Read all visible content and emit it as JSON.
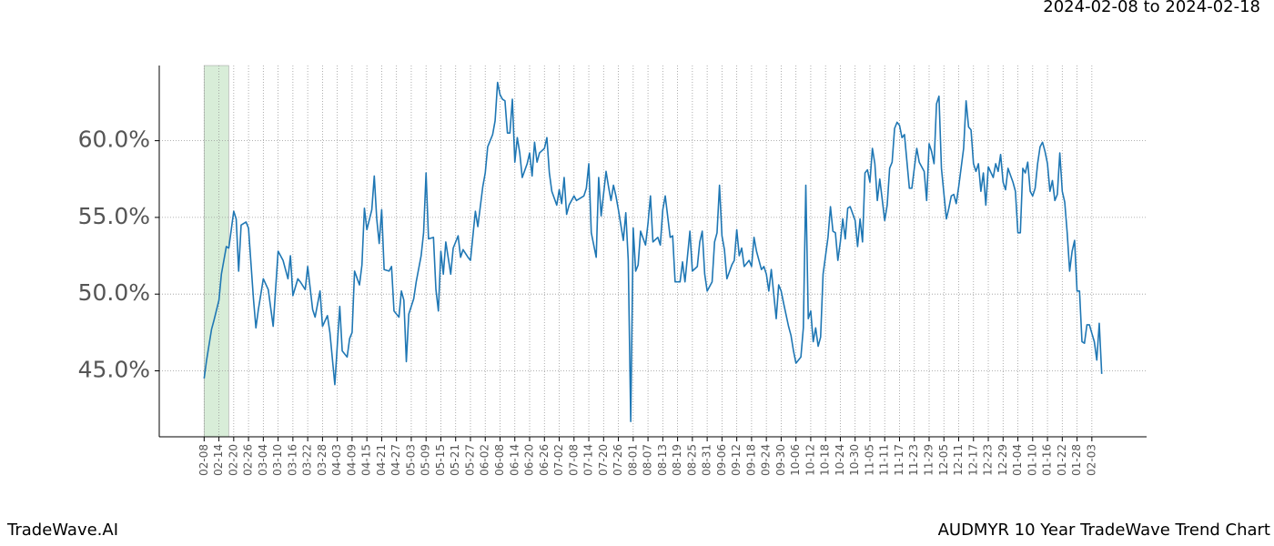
{
  "chart_data": {
    "type": "line",
    "subtitle": "2024-02-08 to 2024-02-18",
    "footer_left": "TradeWave.AI",
    "footer_right": "AUDMYR 10 Year TradeWave Trend Chart",
    "color": "#1f77b4",
    "highlight_span": {
      "start": "02-08",
      "end": "02-18",
      "color": "#d8edd8"
    },
    "grid": true,
    "ylim": [
      40.7,
      64.9
    ],
    "yticks": [
      {
        "value": 45,
        "label": "45.0%"
      },
      {
        "value": 50,
        "label": "50.0%"
      },
      {
        "value": 55,
        "label": "55.0%"
      },
      {
        "value": 60,
        "label": "60.0%"
      }
    ],
    "xticks": [
      "02-08",
      "02-14",
      "02-20",
      "02-26",
      "03-04",
      "03-10",
      "03-16",
      "03-22",
      "03-28",
      "04-03",
      "04-09",
      "04-15",
      "04-21",
      "04-27",
      "05-03",
      "05-09",
      "05-15",
      "05-21",
      "05-27",
      "06-02",
      "06-08",
      "06-14",
      "06-20",
      "06-26",
      "07-02",
      "07-08",
      "07-14",
      "07-20",
      "07-26",
      "08-01",
      "08-07",
      "08-13",
      "08-19",
      "08-25",
      "08-31",
      "09-06",
      "09-12",
      "09-18",
      "09-24",
      "09-30",
      "10-06",
      "10-12",
      "10-18",
      "10-24",
      "10-30",
      "11-05",
      "11-11",
      "11-17",
      "11-23",
      "11-29",
      "12-05",
      "12-11",
      "12-17",
      "12-23",
      "12-29",
      "01-04",
      "01-10",
      "01-16",
      "01-22",
      "01-28",
      "02-03"
    ],
    "x": [
      "02-08",
      "02-09",
      "02-11",
      "02-12",
      "02-14",
      "02-15",
      "02-17",
      "02-18",
      "02-20",
      "02-21",
      "02-22",
      "02-23",
      "02-25",
      "02-26",
      "02-28",
      "03-01",
      "03-02",
      "03-04",
      "03-06",
      "03-08",
      "03-10",
      "03-12",
      "03-14",
      "03-15",
      "03-16",
      "03-18",
      "03-19",
      "03-21",
      "03-22",
      "03-24",
      "03-25",
      "03-27",
      "03-28",
      "03-30",
      "03-31",
      "04-02",
      "04-04",
      "04-05",
      "04-07",
      "04-08",
      "04-09",
      "04-10",
      "04-12",
      "04-13",
      "04-14",
      "04-15",
      "04-17",
      "04-18",
      "04-19",
      "04-20",
      "04-21",
      "04-22",
      "04-24",
      "04-25",
      "04-26",
      "04-28",
      "04-29",
      "04-30",
      "05-01",
      "05-02",
      "05-04",
      "05-05",
      "05-07",
      "05-08",
      "05-09",
      "05-10",
      "05-12",
      "05-13",
      "05-14",
      "05-15",
      "05-16",
      "05-17",
      "05-19",
      "05-20",
      "05-22",
      "05-23",
      "05-24",
      "05-26",
      "05-27",
      "05-29",
      "05-30",
      "06-01",
      "06-02",
      "06-03",
      "06-05",
      "06-06",
      "06-07",
      "06-08",
      "06-09",
      "06-10",
      "06-11",
      "06-12",
      "06-13",
      "06-14",
      "06-15",
      "06-16",
      "06-17",
      "06-19",
      "06-20",
      "06-21",
      "06-22",
      "06-23",
      "06-24",
      "06-26",
      "06-27",
      "06-28",
      "06-29",
      "07-01",
      "07-02",
      "07-03",
      "07-04",
      "07-05",
      "07-06",
      "07-08",
      "07-09",
      "07-10",
      "07-12",
      "07-13",
      "07-14",
      "07-15",
      "07-17",
      "07-18",
      "07-19",
      "07-21",
      "07-22",
      "07-23",
      "07-24",
      "07-25",
      "07-26",
      "07-28",
      "07-29",
      "07-30",
      "07-31",
      "08-01",
      "08-02",
      "08-03",
      "08-04",
      "08-06",
      "08-07",
      "08-08",
      "08-09",
      "08-11",
      "08-12",
      "08-13",
      "08-14",
      "08-16",
      "08-17",
      "08-18",
      "08-20",
      "08-21",
      "08-22",
      "08-24",
      "08-25",
      "08-27",
      "08-28",
      "08-29",
      "08-30",
      "08-31",
      "09-02",
      "09-03",
      "09-04",
      "09-05",
      "09-06",
      "09-07",
      "09-08",
      "09-10",
      "09-11",
      "09-12",
      "09-13",
      "09-14",
      "09-15",
      "09-17",
      "09-18",
      "09-19",
      "09-20",
      "09-22",
      "09-23",
      "09-24",
      "09-25",
      "09-26",
      "09-28",
      "09-29",
      "09-30",
      "10-01",
      "10-03",
      "10-04",
      "10-05",
      "10-06",
      "10-08",
      "10-09",
      "10-10",
      "10-11",
      "10-12",
      "10-13",
      "10-14",
      "10-15",
      "10-16",
      "10-17",
      "10-19",
      "10-20",
      "10-21",
      "10-22",
      "10-23",
      "10-24",
      "10-25",
      "10-26",
      "10-27",
      "10-28",
      "10-30",
      "10-31",
      "11-01",
      "11-02",
      "11-03",
      "11-04",
      "11-05",
      "11-06",
      "11-07",
      "11-08",
      "11-09",
      "11-11",
      "11-12",
      "11-13",
      "11-14",
      "11-15",
      "11-16",
      "11-17",
      "11-18",
      "11-19",
      "11-21",
      "11-22",
      "11-23",
      "11-24",
      "11-25",
      "11-27",
      "11-28",
      "11-29",
      "11-30",
      "12-01",
      "12-02",
      "12-03",
      "12-04",
      "12-06",
      "12-07",
      "12-08",
      "12-09",
      "12-10",
      "12-11",
      "12-13",
      "12-14",
      "12-15",
      "12-16",
      "12-17",
      "12-18",
      "12-19",
      "12-20",
      "12-21",
      "12-22",
      "12-23",
      "12-25",
      "12-26",
      "12-27",
      "12-28",
      "12-29",
      "12-30",
      "12-31",
      "01-02",
      "01-03",
      "01-04",
      "01-05",
      "01-06",
      "01-07",
      "01-08",
      "01-09",
      "01-10",
      "01-11",
      "01-12",
      "01-13",
      "01-14",
      "01-15",
      "01-16",
      "01-17",
      "01-18",
      "01-19",
      "01-20",
      "01-21",
      "01-22",
      "01-23",
      "01-24",
      "01-25",
      "01-26",
      "01-27",
      "01-28",
      "01-29",
      "01-30",
      "01-31",
      "02-01",
      "02-02",
      "02-04",
      "02-05",
      "02-06",
      "02-07"
    ],
    "values": [
      44.5,
      45.7,
      47.7,
      48.3,
      49.6,
      51.3,
      53.1,
      53.0,
      55.4,
      54.9,
      51.5,
      54.5,
      54.7,
      54.3,
      49.7,
      47.8,
      49.0,
      51.0,
      50.3,
      47.9,
      52.8,
      52.2,
      51.0,
      52.5,
      49.9,
      51.0,
      50.8,
      50.3,
      51.8,
      49.0,
      48.5,
      50.2,
      47.9,
      48.6,
      47.5,
      44.1,
      49.2,
      46.3,
      45.9,
      47.1,
      47.5,
      51.5,
      50.6,
      51.9,
      55.6,
      54.2,
      55.5,
      57.7,
      54.9,
      53.3,
      55.5,
      51.6,
      51.5,
      51.8,
      48.9,
      48.5,
      50.2,
      49.6,
      45.6,
      48.7,
      49.7,
      50.8,
      52.5,
      54.0,
      57.9,
      53.6,
      53.7,
      50.3,
      48.9,
      52.8,
      51.3,
      53.4,
      51.3,
      53.0,
      53.8,
      52.4,
      52.9,
      52.4,
      52.2,
      55.4,
      54.4,
      57.0,
      57.9,
      59.6,
      60.4,
      61.3,
      63.8,
      63.0,
      62.7,
      62.6,
      60.5,
      60.5,
      62.7,
      58.6,
      60.2,
      59.2,
      57.6,
      58.5,
      59.2,
      57.7,
      59.9,
      58.6,
      59.2,
      59.5,
      60.2,
      57.9,
      56.7,
      55.8,
      56.8,
      55.9,
      57.6,
      55.2,
      55.8,
      56.4,
      56.1,
      56.2,
      56.4,
      56.9,
      58.5,
      54.0,
      52.4,
      57.6,
      55.1,
      58.0,
      57.0,
      56.1,
      57.1,
      56.4,
      55.5,
      53.5,
      55.3,
      52.2,
      41.7,
      54.3,
      51.5,
      51.9,
      54.1,
      53.2,
      54.6,
      56.4,
      53.4,
      53.7,
      53.2,
      55.5,
      56.4,
      53.7,
      53.8,
      50.8,
      50.8,
      52.1,
      50.8,
      54.1,
      51.5,
      51.8,
      53.4,
      54.1,
      51.3,
      50.2,
      50.8,
      53.4,
      54.0,
      57.1,
      53.8,
      52.9,
      51.0,
      51.9,
      52.2,
      54.2,
      52.5,
      53.0,
      51.8,
      52.2,
      51.8,
      53.7,
      52.8,
      51.6,
      51.8,
      51.3,
      50.2,
      51.6,
      48.4,
      50.6,
      50.2,
      49.4,
      47.9,
      47.3,
      46.3,
      45.5,
      45.9,
      47.8,
      57.1,
      48.4,
      48.9,
      46.9,
      47.8,
      46.6,
      47.2,
      51.3,
      53.7,
      55.7,
      54.1,
      54.0,
      52.2,
      53.4,
      54.9,
      53.6,
      55.6,
      55.7,
      54.8,
      53.1,
      54.9,
      53.4,
      57.9,
      58.1,
      57.3,
      59.5,
      58.5,
      56.1,
      57.5,
      54.8,
      55.8,
      58.2,
      58.6,
      60.8,
      61.2,
      61.0,
      60.2,
      60.4,
      56.9,
      56.9,
      58.2,
      59.5,
      58.6,
      58.0,
      56.1,
      59.8,
      59.3,
      58.5,
      62.4,
      62.9,
      58.2,
      54.9,
      55.6,
      56.4,
      56.5,
      55.9,
      57.0,
      59.5,
      62.6,
      60.9,
      60.7,
      58.5,
      58.0,
      58.5,
      56.7,
      57.9,
      55.8,
      58.3,
      57.6,
      58.5,
      58.0,
      59.1,
      57.3,
      56.8,
      58.2,
      57.3,
      56.7,
      54.0,
      54.0,
      58.2,
      57.9,
      58.6,
      56.7,
      56.4,
      56.9,
      58.5,
      59.6,
      59.9,
      59.3,
      58.5,
      56.7,
      57.4,
      56.1,
      56.5,
      59.2,
      56.7,
      56.0,
      54.0,
      51.5,
      52.8,
      53.5,
      50.2,
      50.2,
      46.9,
      46.8,
      48.0,
      48.0,
      46.9,
      45.7,
      48.1,
      44.8
    ]
  }
}
